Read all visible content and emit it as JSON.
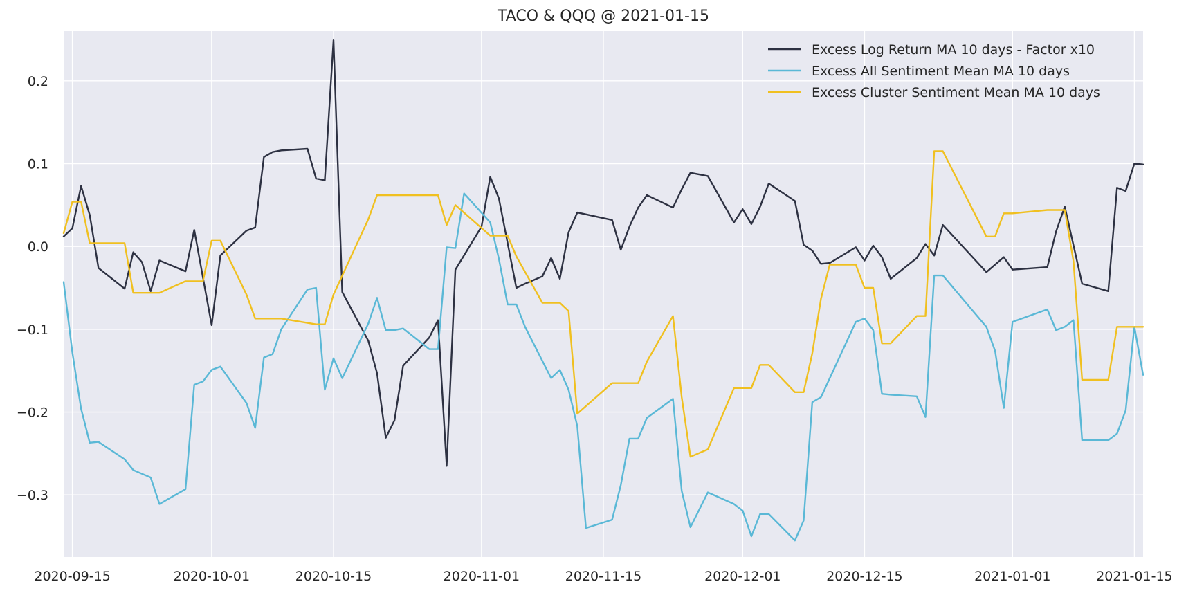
{
  "chart_data": {
    "type": "line",
    "title": "TACO & QQQ @ 2021-01-15",
    "xlabel": "",
    "ylabel": "",
    "x_type": "date",
    "xlim": [
      "2020-09-14",
      "2021-01-16"
    ],
    "ylim": [
      -0.375,
      0.26
    ],
    "grid": true,
    "legend_position": "top-right",
    "background": "#e8e9f1",
    "x_ticks": [
      {
        "value": "2020-09-15",
        "label": "2020-09-15"
      },
      {
        "value": "2020-10-01",
        "label": "2020-10-01"
      },
      {
        "value": "2020-10-15",
        "label": "2020-10-15"
      },
      {
        "value": "2020-11-01",
        "label": "2020-11-01"
      },
      {
        "value": "2020-11-15",
        "label": "2020-11-15"
      },
      {
        "value": "2020-12-01",
        "label": "2020-12-01"
      },
      {
        "value": "2020-12-15",
        "label": "2020-12-15"
      },
      {
        "value": "2021-01-01",
        "label": "2021-01-01"
      },
      {
        "value": "2021-01-15",
        "label": "2021-01-15"
      }
    ],
    "y_ticks": [
      {
        "value": 0.2,
        "label": "0.2"
      },
      {
        "value": 0.1,
        "label": "0.1"
      },
      {
        "value": 0.0,
        "label": "0.0"
      },
      {
        "value": -0.1,
        "label": "−0.1"
      },
      {
        "value": -0.2,
        "label": "−0.2"
      },
      {
        "value": -0.3,
        "label": "−0.3"
      }
    ],
    "series": [
      {
        "name": "Excess Log Return MA 10 days - Factor x10",
        "color": "#2d3142",
        "points": [
          [
            "2020-09-14",
            0.012
          ],
          [
            "2020-09-15",
            0.022
          ],
          [
            "2020-09-16",
            0.073
          ],
          [
            "2020-09-17",
            0.038
          ],
          [
            "2020-09-18",
            -0.026
          ],
          [
            "2020-09-21",
            -0.051
          ],
          [
            "2020-09-22",
            -0.007
          ],
          [
            "2020-09-23",
            -0.019
          ],
          [
            "2020-09-24",
            -0.054
          ],
          [
            "2020-09-25",
            -0.017
          ],
          [
            "2020-09-28",
            -0.03
          ],
          [
            "2020-09-29",
            0.02
          ],
          [
            "2020-10-01",
            -0.095
          ],
          [
            "2020-10-02",
            -0.011
          ],
          [
            "2020-10-05",
            0.019
          ],
          [
            "2020-10-06",
            0.023
          ],
          [
            "2020-10-07",
            0.108
          ],
          [
            "2020-10-08",
            0.114
          ],
          [
            "2020-10-09",
            0.116
          ],
          [
            "2020-10-12",
            0.118
          ],
          [
            "2020-10-13",
            0.082
          ],
          [
            "2020-10-14",
            0.08
          ],
          [
            "2020-10-15",
            0.249
          ],
          [
            "2020-10-16",
            -0.055
          ],
          [
            "2020-10-19",
            -0.114
          ],
          [
            "2020-10-20",
            -0.153
          ],
          [
            "2020-10-21",
            -0.231
          ],
          [
            "2020-10-22",
            -0.21
          ],
          [
            "2020-10-23",
            -0.144
          ],
          [
            "2020-10-26",
            -0.11
          ],
          [
            "2020-10-27",
            -0.089
          ],
          [
            "2020-10-28",
            -0.265
          ],
          [
            "2020-10-29",
            -0.028
          ],
          [
            "2020-11-01",
            0.024
          ],
          [
            "2020-11-02",
            0.084
          ],
          [
            "2020-11-03",
            0.058
          ],
          [
            "2020-11-05",
            -0.05
          ],
          [
            "2020-11-06",
            -0.045
          ],
          [
            "2020-11-08",
            -0.036
          ],
          [
            "2020-11-09",
            -0.014
          ],
          [
            "2020-11-10",
            -0.039
          ],
          [
            "2020-11-11",
            0.017
          ],
          [
            "2020-11-12",
            0.041
          ],
          [
            "2020-11-16",
            0.032
          ],
          [
            "2020-11-17",
            -0.004
          ],
          [
            "2020-11-18",
            0.024
          ],
          [
            "2020-11-19",
            0.047
          ],
          [
            "2020-11-20",
            0.062
          ],
          [
            "2020-11-23",
            0.047
          ],
          [
            "2020-11-24",
            0.069
          ],
          [
            "2020-11-25",
            0.089
          ],
          [
            "2020-11-27",
            0.085
          ],
          [
            "2020-11-30",
            0.029
          ],
          [
            "2020-12-01",
            0.045
          ],
          [
            "2020-12-02",
            0.027
          ],
          [
            "2020-12-03",
            0.048
          ],
          [
            "2020-12-04",
            0.076
          ],
          [
            "2020-12-07",
            0.055
          ],
          [
            "2020-12-08",
            0.002
          ],
          [
            "2020-12-09",
            -0.005
          ],
          [
            "2020-12-10",
            -0.021
          ],
          [
            "2020-12-11",
            -0.02
          ],
          [
            "2020-12-14",
            -0.001
          ],
          [
            "2020-12-15",
            -0.017
          ],
          [
            "2020-12-16",
            0.001
          ],
          [
            "2020-12-17",
            -0.013
          ],
          [
            "2020-12-18",
            -0.039
          ],
          [
            "2020-12-21",
            -0.014
          ],
          [
            "2020-12-22",
            0.003
          ],
          [
            "2020-12-23",
            -0.011
          ],
          [
            "2020-12-24",
            0.026
          ],
          [
            "2020-12-29",
            -0.031
          ],
          [
            "2020-12-31",
            -0.013
          ],
          [
            "2021-01-01",
            -0.028
          ],
          [
            "2021-01-05",
            -0.025
          ],
          [
            "2021-01-06",
            0.018
          ],
          [
            "2021-01-07",
            0.048
          ],
          [
            "2021-01-09",
            -0.045
          ],
          [
            "2021-01-12",
            -0.054
          ],
          [
            "2021-01-13",
            0.071
          ],
          [
            "2021-01-14",
            0.067
          ],
          [
            "2021-01-15",
            0.1
          ],
          [
            "2021-01-16",
            0.099
          ]
        ]
      },
      {
        "name": "Excess All Sentiment Mean MA 10 days",
        "color": "#5ab8d6",
        "points": [
          [
            "2020-09-14",
            -0.043
          ],
          [
            "2020-09-15",
            -0.128
          ],
          [
            "2020-09-16",
            -0.196
          ],
          [
            "2020-09-17",
            -0.237
          ],
          [
            "2020-09-18",
            -0.236
          ],
          [
            "2020-09-21",
            -0.257
          ],
          [
            "2020-09-22",
            -0.27
          ],
          [
            "2020-09-24",
            -0.279
          ],
          [
            "2020-09-25",
            -0.311
          ],
          [
            "2020-09-28",
            -0.293
          ],
          [
            "2020-09-29",
            -0.167
          ],
          [
            "2020-09-30",
            -0.163
          ],
          [
            "2020-10-01",
            -0.149
          ],
          [
            "2020-10-02",
            -0.145
          ],
          [
            "2020-10-05",
            -0.189
          ],
          [
            "2020-10-06",
            -0.219
          ],
          [
            "2020-10-07",
            -0.134
          ],
          [
            "2020-10-08",
            -0.13
          ],
          [
            "2020-10-09",
            -0.1
          ],
          [
            "2020-10-12",
            -0.052
          ],
          [
            "2020-10-13",
            -0.05
          ],
          [
            "2020-10-14",
            -0.173
          ],
          [
            "2020-10-15",
            -0.135
          ],
          [
            "2020-10-16",
            -0.159
          ],
          [
            "2020-10-19",
            -0.093
          ],
          [
            "2020-10-20",
            -0.062
          ],
          [
            "2020-10-21",
            -0.101
          ],
          [
            "2020-10-22",
            -0.101
          ],
          [
            "2020-10-23",
            -0.099
          ],
          [
            "2020-10-26",
            -0.124
          ],
          [
            "2020-10-27",
            -0.124
          ],
          [
            "2020-10-28",
            -0.001
          ],
          [
            "2020-10-29",
            -0.002
          ],
          [
            "2020-10-30",
            0.064
          ],
          [
            "2020-11-02",
            0.029
          ],
          [
            "2020-11-03",
            -0.015
          ],
          [
            "2020-11-04",
            -0.07
          ],
          [
            "2020-11-05",
            -0.07
          ],
          [
            "2020-11-06",
            -0.097
          ],
          [
            "2020-11-09",
            -0.159
          ],
          [
            "2020-11-10",
            -0.149
          ],
          [
            "2020-11-11",
            -0.173
          ],
          [
            "2020-11-12",
            -0.217
          ],
          [
            "2020-11-13",
            -0.34
          ],
          [
            "2020-11-16",
            -0.33
          ],
          [
            "2020-11-17",
            -0.288
          ],
          [
            "2020-11-18",
            -0.232
          ],
          [
            "2020-11-19",
            -0.232
          ],
          [
            "2020-11-20",
            -0.207
          ],
          [
            "2020-11-23",
            -0.184
          ],
          [
            "2020-11-24",
            -0.295
          ],
          [
            "2020-11-25",
            -0.339
          ],
          [
            "2020-11-27",
            -0.297
          ],
          [
            "2020-11-30",
            -0.311
          ],
          [
            "2020-12-01",
            -0.319
          ],
          [
            "2020-12-02",
            -0.35
          ],
          [
            "2020-12-03",
            -0.323
          ],
          [
            "2020-12-04",
            -0.323
          ],
          [
            "2020-12-07",
            -0.355
          ],
          [
            "2020-12-08",
            -0.331
          ],
          [
            "2020-12-09",
            -0.188
          ],
          [
            "2020-12-10",
            -0.182
          ],
          [
            "2020-12-14",
            -0.091
          ],
          [
            "2020-12-15",
            -0.087
          ],
          [
            "2020-12-16",
            -0.101
          ],
          [
            "2020-12-17",
            -0.178
          ],
          [
            "2020-12-18",
            -0.179
          ],
          [
            "2020-12-21",
            -0.181
          ],
          [
            "2020-12-22",
            -0.206
          ],
          [
            "2020-12-23",
            -0.035
          ],
          [
            "2020-12-24",
            -0.035
          ],
          [
            "2020-12-29",
            -0.097
          ],
          [
            "2020-12-30",
            -0.126
          ],
          [
            "2020-12-31",
            -0.195
          ],
          [
            "2021-01-01",
            -0.091
          ],
          [
            "2021-01-05",
            -0.076
          ],
          [
            "2021-01-06",
            -0.101
          ],
          [
            "2021-01-07",
            -0.097
          ],
          [
            "2021-01-08",
            -0.089
          ],
          [
            "2021-01-09",
            -0.234
          ],
          [
            "2021-01-12",
            -0.234
          ],
          [
            "2021-01-13",
            -0.226
          ],
          [
            "2021-01-14",
            -0.198
          ],
          [
            "2021-01-15",
            -0.097
          ],
          [
            "2021-01-16",
            -0.155
          ]
        ]
      },
      {
        "name": "Excess Cluster Sentiment Mean MA 10 days",
        "color": "#f0c020",
        "points": [
          [
            "2020-09-14",
            0.016
          ],
          [
            "2020-09-15",
            0.054
          ],
          [
            "2020-09-16",
            0.054
          ],
          [
            "2020-09-17",
            0.004
          ],
          [
            "2020-09-18",
            0.004
          ],
          [
            "2020-09-21",
            0.004
          ],
          [
            "2020-09-22",
            -0.056
          ],
          [
            "2020-09-25",
            -0.056
          ],
          [
            "2020-09-28",
            -0.042
          ],
          [
            "2020-09-30",
            -0.042
          ],
          [
            "2020-10-01",
            0.007
          ],
          [
            "2020-10-02",
            0.007
          ],
          [
            "2020-10-05",
            -0.058
          ],
          [
            "2020-10-06",
            -0.087
          ],
          [
            "2020-10-09",
            -0.087
          ],
          [
            "2020-10-13",
            -0.094
          ],
          [
            "2020-10-14",
            -0.094
          ],
          [
            "2020-10-15",
            -0.058
          ],
          [
            "2020-10-19",
            0.033
          ],
          [
            "2020-10-20",
            0.062
          ],
          [
            "2020-10-27",
            0.062
          ],
          [
            "2020-10-28",
            0.026
          ],
          [
            "2020-10-29",
            0.05
          ],
          [
            "2020-11-02",
            0.013
          ],
          [
            "2020-11-04",
            0.013
          ],
          [
            "2020-11-05",
            -0.012
          ],
          [
            "2020-11-08",
            -0.068
          ],
          [
            "2020-11-10",
            -0.068
          ],
          [
            "2020-11-11",
            -0.078
          ],
          [
            "2020-11-12",
            -0.202
          ],
          [
            "2020-11-16",
            -0.165
          ],
          [
            "2020-11-19",
            -0.165
          ],
          [
            "2020-11-20",
            -0.139
          ],
          [
            "2020-11-23",
            -0.084
          ],
          [
            "2020-11-24",
            -0.182
          ],
          [
            "2020-11-25",
            -0.254
          ],
          [
            "2020-11-27",
            -0.245
          ],
          [
            "2020-11-30",
            -0.171
          ],
          [
            "2020-12-01",
            -0.171
          ],
          [
            "2020-12-02",
            -0.171
          ],
          [
            "2020-12-03",
            -0.143
          ],
          [
            "2020-12-04",
            -0.143
          ],
          [
            "2020-12-07",
            -0.176
          ],
          [
            "2020-12-08",
            -0.176
          ],
          [
            "2020-12-09",
            -0.129
          ],
          [
            "2020-12-10",
            -0.063
          ],
          [
            "2020-12-11",
            -0.022
          ],
          [
            "2020-12-14",
            -0.022
          ],
          [
            "2020-12-15",
            -0.05
          ],
          [
            "2020-12-16",
            -0.05
          ],
          [
            "2020-12-17",
            -0.117
          ],
          [
            "2020-12-18",
            -0.117
          ],
          [
            "2020-12-21",
            -0.084
          ],
          [
            "2020-12-22",
            -0.084
          ],
          [
            "2020-12-23",
            0.115
          ],
          [
            "2020-12-24",
            0.115
          ],
          [
            "2020-12-29",
            0.012
          ],
          [
            "2020-12-30",
            0.012
          ],
          [
            "2020-12-31",
            0.04
          ],
          [
            "2021-01-01",
            0.04
          ],
          [
            "2021-01-05",
            0.044
          ],
          [
            "2021-01-07",
            0.044
          ],
          [
            "2021-01-08",
            -0.018
          ],
          [
            "2021-01-09",
            -0.161
          ],
          [
            "2021-01-12",
            -0.161
          ],
          [
            "2021-01-13",
            -0.097
          ],
          [
            "2021-01-16",
            -0.097
          ]
        ]
      }
    ]
  }
}
